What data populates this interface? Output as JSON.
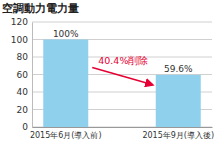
{
  "chart_data": {
    "type": "bar",
    "title": "空調動力電力量",
    "categories": [
      "2015年6月(導入前)",
      "2015年9月(導入後)"
    ],
    "values": [
      100,
      59.6
    ],
    "value_labels": [
      "100%",
      "59.6%"
    ],
    "color": "#8fd0ec",
    "ylim": [
      0,
      120
    ],
    "yticks": [
      0,
      20,
      40,
      60,
      80,
      100,
      120
    ],
    "grid": true,
    "data_labels": true,
    "annotation": "40.4%削除"
  }
}
